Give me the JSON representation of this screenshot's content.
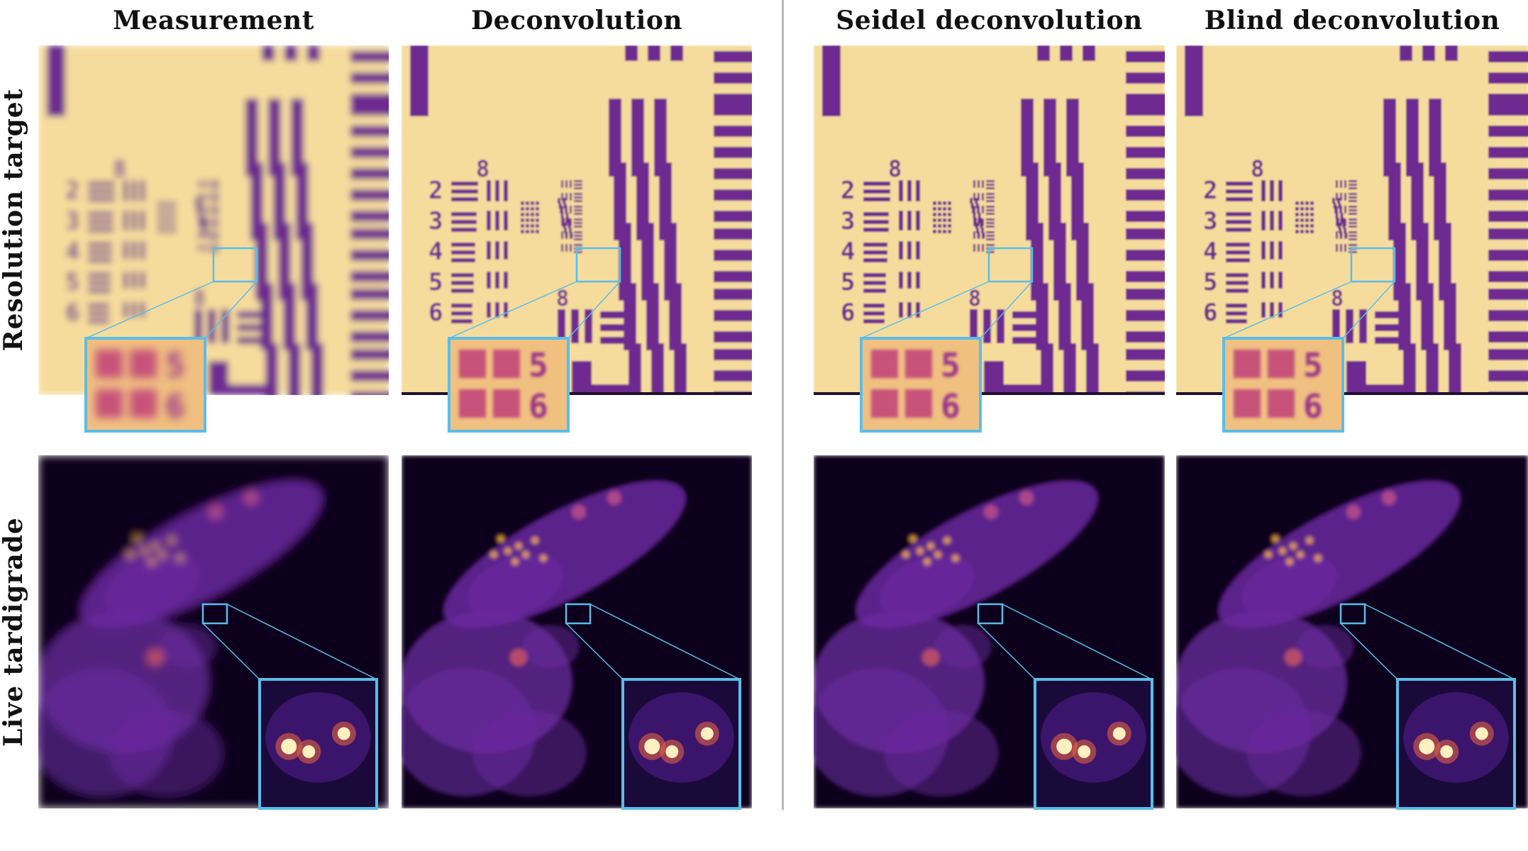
{
  "columns": [
    {
      "title": "Measurement",
      "method": "measurement"
    },
    {
      "title": "Deconvolution",
      "method": "deconvolution"
    },
    {
      "title": "Seidel deconvolution",
      "method": "seidel"
    },
    {
      "title": "Blind deconvolution",
      "method": "blind"
    }
  ],
  "rows": [
    {
      "label": "Resolution target",
      "sample": "resolution-target"
    },
    {
      "label": "Live tardigrade",
      "sample": "tardigrade"
    }
  ],
  "colors": {
    "inset_border": "#5bbde8",
    "divider": "#b8b8b8",
    "target_background": "#f6dc9c",
    "target_bars": "#6e2a90",
    "tardigrade_background": "#08051a",
    "tardigrade_body": "#6b2aa0",
    "tardigrade_hotspot": "#ffb347"
  },
  "colormap": "magma"
}
